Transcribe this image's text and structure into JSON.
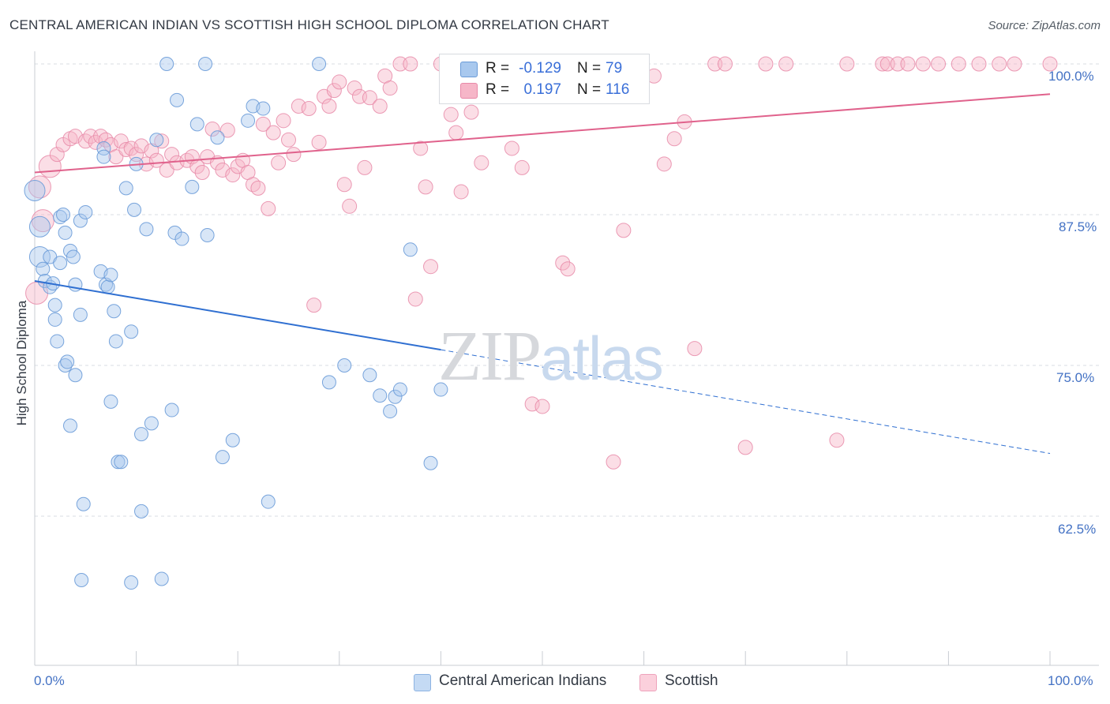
{
  "header": {
    "title": "CENTRAL AMERICAN INDIAN VS SCOTTISH HIGH SCHOOL DIPLOMA CORRELATION CHART",
    "source": "Source: ZipAtlas.com"
  },
  "legend": {
    "r_label": "R =",
    "n_label": "N =",
    "rows": [
      {
        "r": "-0.129",
        "n": "79"
      },
      {
        "r": "0.197",
        "n": "116"
      }
    ]
  },
  "bottom_legend": {
    "series1": "Central American Indians",
    "series2": "Scottish"
  },
  "y_axis_label": "High School Diploma",
  "y_tick_labels": [
    "100.0%",
    "87.5%",
    "75.0%",
    "62.5%"
  ],
  "x_tick_labels": {
    "left": "0.0%",
    "right": "100.0%"
  },
  "watermark": {
    "zip": "ZIP",
    "atlas": "atlas"
  },
  "colors": {
    "blue_fill": "#a8c8ee",
    "blue_stroke": "#6a9bd8",
    "blue_line": "#2f6fd1",
    "pink_fill": "#f6b6c8",
    "pink_stroke": "#e889a8",
    "pink_line": "#e0628c",
    "grid": "#d9dde3",
    "axis_text": "#4472c4"
  },
  "chart_data": {
    "type": "scatter",
    "title": "CENTRAL AMERICAN INDIAN VS SCOTTISH HIGH SCHOOL DIPLOMA CORRELATION CHART",
    "xlabel": "",
    "ylabel": "High School Diploma",
    "xlim": [
      0,
      100
    ],
    "ylim": [
      52.5,
      101.5
    ],
    "y_ticks": [
      62.5,
      75.0,
      87.5,
      100.0
    ],
    "grid": true,
    "legend_position": "top-center",
    "series": [
      {
        "name": "Central American Indians",
        "r": -0.129,
        "n": 79,
        "trend": {
          "x0": 0,
          "y0": 82.0,
          "x1": 40,
          "y1": 76.3,
          "dash_x1": 100,
          "dash_y1": 67.7
        },
        "points": [
          [
            0,
            89.5
          ],
          [
            0.5,
            86.5
          ],
          [
            0.5,
            84
          ],
          [
            0.8,
            83
          ],
          [
            1,
            82
          ],
          [
            1.5,
            84
          ],
          [
            1.5,
            81.5
          ],
          [
            1.8,
            81.8
          ],
          [
            2,
            80
          ],
          [
            2,
            78.8
          ],
          [
            2.2,
            77
          ],
          [
            2.5,
            83.5
          ],
          [
            2.5,
            87.3
          ],
          [
            2.8,
            87.5
          ],
          [
            3,
            86
          ],
          [
            3,
            75
          ],
          [
            3.2,
            75.3
          ],
          [
            3.5,
            84.5
          ],
          [
            3.5,
            70
          ],
          [
            3.8,
            84
          ],
          [
            4,
            81.7
          ],
          [
            4,
            74.2
          ],
          [
            4.5,
            87
          ],
          [
            4.5,
            79.2
          ],
          [
            4.8,
            63.5
          ],
          [
            4.6,
            57.2
          ],
          [
            5,
            87.7
          ],
          [
            6.5,
            82.8
          ],
          [
            6.8,
            93
          ],
          [
            6.8,
            92.3
          ],
          [
            7,
            81.7
          ],
          [
            7.2,
            81.5
          ],
          [
            7.5,
            82.5
          ],
          [
            7.8,
            79.5
          ],
          [
            7.5,
            72
          ],
          [
            8,
            77
          ],
          [
            8.2,
            67
          ],
          [
            8.5,
            67
          ],
          [
            9,
            89.7
          ],
          [
            9.5,
            57
          ],
          [
            9.5,
            77.8
          ],
          [
            9.8,
            87.9
          ],
          [
            10,
            91.7
          ],
          [
            10.5,
            62.9
          ],
          [
            10.5,
            69.3
          ],
          [
            11,
            86.3
          ],
          [
            11.5,
            70.2
          ],
          [
            12,
            93.7
          ],
          [
            12.5,
            57.3
          ],
          [
            13,
            100
          ],
          [
            13.5,
            71.3
          ],
          [
            13.8,
            86
          ],
          [
            14,
            97
          ],
          [
            14.5,
            85.5
          ],
          [
            15.5,
            89.8
          ],
          [
            16,
            95
          ],
          [
            16.8,
            100
          ],
          [
            17,
            85.8
          ],
          [
            18,
            93.9
          ],
          [
            18.5,
            67.4
          ],
          [
            19.5,
            68.8
          ],
          [
            21,
            95.3
          ],
          [
            21.5,
            96.5
          ],
          [
            22.5,
            96.3
          ],
          [
            23,
            63.7
          ],
          [
            28,
            100
          ],
          [
            29,
            73.6
          ],
          [
            30.5,
            75
          ],
          [
            33,
            74.2
          ],
          [
            34,
            72.5
          ],
          [
            35,
            71.2
          ],
          [
            35.5,
            72.4
          ],
          [
            36,
            73
          ],
          [
            37,
            84.6
          ],
          [
            39,
            66.9
          ],
          [
            40,
            73
          ]
        ]
      },
      {
        "name": "Scottish",
        "r": 0.197,
        "n": 116,
        "trend": {
          "x0": 0,
          "y0": 91.0,
          "x1": 100,
          "y1": 97.5
        },
        "points": [
          [
            0.2,
            81
          ],
          [
            0.5,
            89.8
          ],
          [
            0.8,
            87
          ],
          [
            1.5,
            91.5
          ],
          [
            2.2,
            92.5
          ],
          [
            2.8,
            93.3
          ],
          [
            3.5,
            93.8
          ],
          [
            4,
            94
          ],
          [
            5,
            93.6
          ],
          [
            5.5,
            94
          ],
          [
            6,
            93.5
          ],
          [
            6.5,
            94
          ],
          [
            7,
            93.7
          ],
          [
            7.5,
            93.3
          ],
          [
            8,
            92.3
          ],
          [
            8.5,
            93.6
          ],
          [
            9,
            92.9
          ],
          [
            9.5,
            93
          ],
          [
            10,
            92.5
          ],
          [
            10.5,
            93.2
          ],
          [
            11,
            91.7
          ],
          [
            11.5,
            92.8
          ],
          [
            12,
            92
          ],
          [
            12.5,
            93.6
          ],
          [
            13,
            91.2
          ],
          [
            13.5,
            92.5
          ],
          [
            14,
            91.8
          ],
          [
            15,
            92
          ],
          [
            15.5,
            92.3
          ],
          [
            16,
            91.5
          ],
          [
            16.5,
            91
          ],
          [
            17,
            92.3
          ],
          [
            17.5,
            94.6
          ],
          [
            18,
            91.8
          ],
          [
            18.5,
            91.2
          ],
          [
            19,
            94.5
          ],
          [
            19.5,
            90.8
          ],
          [
            20,
            91.5
          ],
          [
            20.5,
            92
          ],
          [
            21,
            91
          ],
          [
            21.5,
            90
          ],
          [
            22,
            89.7
          ],
          [
            22.5,
            95
          ],
          [
            23,
            88
          ],
          [
            23.5,
            94.3
          ],
          [
            24,
            91.8
          ],
          [
            24.5,
            95.3
          ],
          [
            25,
            93.7
          ],
          [
            25.5,
            92.5
          ],
          [
            26,
            96.5
          ],
          [
            27,
            96.3
          ],
          [
            27.5,
            80
          ],
          [
            28,
            93.5
          ],
          [
            28.5,
            97.3
          ],
          [
            29,
            96.5
          ],
          [
            29.5,
            97.8
          ],
          [
            30,
            98.5
          ],
          [
            30.5,
            90
          ],
          [
            31,
            88.2
          ],
          [
            31.5,
            98
          ],
          [
            32,
            97.3
          ],
          [
            32.5,
            91.4
          ],
          [
            33,
            97.2
          ],
          [
            34,
            96.5
          ],
          [
            34.5,
            99
          ],
          [
            35,
            98
          ],
          [
            36,
            100
          ],
          [
            37,
            100
          ],
          [
            37.5,
            80.5
          ],
          [
            38,
            93
          ],
          [
            38.5,
            89.8
          ],
          [
            39,
            83.2
          ],
          [
            40,
            100
          ],
          [
            41,
            95.8
          ],
          [
            41.5,
            94.3
          ],
          [
            42,
            89.4
          ],
          [
            43,
            96
          ],
          [
            44,
            91.8
          ],
          [
            45,
            100
          ],
          [
            46,
            100
          ],
          [
            47,
            93
          ],
          [
            48,
            91.4
          ],
          [
            48.5,
            100
          ],
          [
            49,
            71.8
          ],
          [
            50,
            71.6
          ],
          [
            51,
            100
          ],
          [
            52,
            83.5
          ],
          [
            52.5,
            83
          ],
          [
            55,
            100
          ],
          [
            57,
            67
          ],
          [
            58,
            86.2
          ],
          [
            59,
            100
          ],
          [
            61,
            99
          ],
          [
            62,
            91.7
          ],
          [
            63,
            93.8
          ],
          [
            64,
            95.2
          ],
          [
            65,
            76.4
          ],
          [
            67,
            100
          ],
          [
            68,
            100
          ],
          [
            70,
            68.2
          ],
          [
            72,
            100
          ],
          [
            74,
            100
          ],
          [
            79,
            68.8
          ],
          [
            80,
            100
          ],
          [
            83.5,
            100
          ],
          [
            84,
            100
          ],
          [
            85,
            100
          ],
          [
            86,
            100
          ],
          [
            87.5,
            100
          ],
          [
            89,
            100
          ],
          [
            91,
            100
          ],
          [
            93,
            100
          ],
          [
            95,
            100
          ],
          [
            96.5,
            100
          ],
          [
            100,
            100
          ]
        ]
      }
    ]
  }
}
